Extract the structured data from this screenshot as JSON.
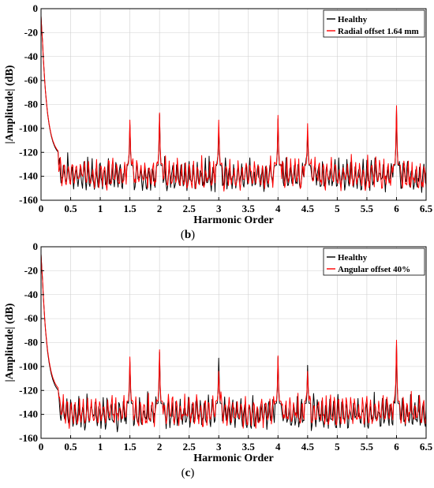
{
  "chart_data": [
    {
      "type": "line",
      "caption": "(b)",
      "caption_letter": "b",
      "xlabel": "Harmonic Order",
      "ylabel": "|Amplitude| (dB)",
      "xlim": [
        0,
        6.5
      ],
      "ylim": [
        -160,
        0
      ],
      "xticks": [
        "0",
        "0.5",
        "1",
        "1.5",
        "2",
        "2.5",
        "3",
        "3.5",
        "4",
        "4.5",
        "5",
        "5.5",
        "6",
        "6.5"
      ],
      "yticks": [
        "0",
        "-20",
        "-40",
        "-60",
        "-80",
        "-100",
        "-120",
        "-140",
        "-160"
      ],
      "grid": true,
      "legend_position": "top-right",
      "series": [
        {
          "name": "Healthy",
          "color": "#000000",
          "noise_floor": -133,
          "peaks": [
            [
              1.5,
              -97
            ],
            [
              2,
              -88
            ],
            [
              3,
              -99
            ],
            [
              4,
              -92
            ],
            [
              4.5,
              -102
            ],
            [
              6,
              -84
            ]
          ]
        },
        {
          "name": "Radial offset 1.64 mm",
          "color": "#ff0000",
          "noise_floor": -132,
          "peaks": [
            [
              1.5,
              -93
            ],
            [
              2,
              -87
            ],
            [
              3,
              -93
            ],
            [
              4,
              -89
            ],
            [
              4.5,
              -96
            ],
            [
              6,
              -81
            ]
          ]
        }
      ]
    },
    {
      "type": "line",
      "caption": "(c)",
      "caption_letter": "c",
      "xlabel": "Harmonic Order",
      "ylabel": "|Amplitude| (dB)",
      "xlim": [
        0,
        6.5
      ],
      "ylim": [
        -160,
        0
      ],
      "xticks": [
        "0",
        "0.5",
        "1",
        "1.5",
        "2",
        "2.5",
        "3",
        "3.5",
        "4",
        "4.5",
        "5",
        "5.5",
        "6",
        "6.5"
      ],
      "yticks": [
        "0",
        "-20",
        "-40",
        "-60",
        "-80",
        "-100",
        "-120",
        "-140",
        "-160"
      ],
      "grid": true,
      "legend_position": "top-right",
      "series": [
        {
          "name": "Healthy",
          "color": "#000000",
          "noise_floor": -133,
          "peaks": [
            [
              1.5,
              -96
            ],
            [
              2,
              -88
            ],
            [
              3,
              -93
            ],
            [
              4,
              -92
            ],
            [
              4.5,
              -99
            ],
            [
              6,
              -81
            ]
          ]
        },
        {
          "name": "Angular offset 40%",
          "color": "#ff0000",
          "noise_floor": -131,
          "peaks": [
            [
              1.5,
              -92
            ],
            [
              2,
              -86
            ],
            [
              3,
              -104
            ],
            [
              4,
              -91
            ],
            [
              4.5,
              -104
            ],
            [
              6,
              -78
            ]
          ]
        }
      ]
    }
  ]
}
